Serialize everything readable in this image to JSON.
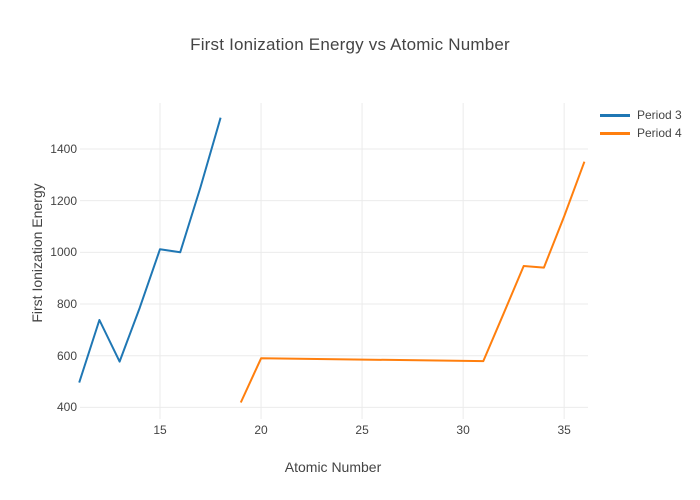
{
  "page": {
    "background": "#ffffff"
  },
  "chart_data": {
    "type": "line",
    "title": "First Ionization Energy vs Atomic Number",
    "xlabel": "Atomic Number",
    "ylabel": "First Ionization Energy",
    "x_range": [
      11.04,
      36.18
    ],
    "y_range": [
      355,
      1578
    ],
    "x_ticks": [
      15,
      20,
      25,
      30,
      35
    ],
    "y_ticks": [
      400,
      600,
      800,
      1000,
      1200,
      1400
    ],
    "grid": true,
    "grid_color": "#ebebeb",
    "text_color": "#444444",
    "legend_position": "outside-top-right",
    "series": [
      {
        "name": "Period 3",
        "color": "#1f77b4",
        "points": [
          [
            11,
            496
          ],
          [
            12,
            738
          ],
          [
            13,
            577
          ],
          [
            14,
            786
          ],
          [
            15,
            1012
          ],
          [
            16,
            1000
          ],
          [
            17,
            1251
          ],
          [
            18,
            1521
          ]
        ]
      },
      {
        "name": "Period 4",
        "color": "#ff7f0e",
        "points": [
          [
            19,
            419
          ],
          [
            20,
            590
          ],
          [
            31,
            579
          ],
          [
            32,
            762
          ],
          [
            33,
            947
          ],
          [
            34,
            941
          ],
          [
            35,
            1140
          ],
          [
            36,
            1351
          ]
        ]
      }
    ]
  }
}
